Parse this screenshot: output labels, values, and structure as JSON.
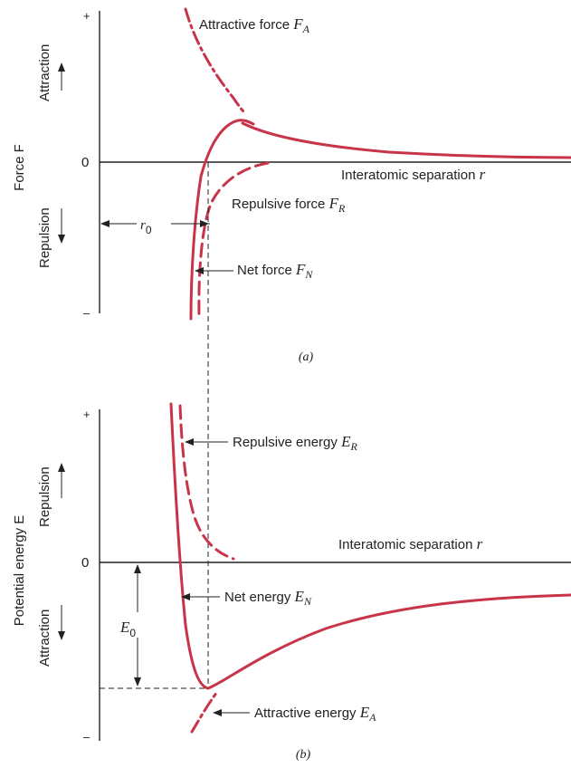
{
  "panel_a": {
    "caption": "(a)",
    "y_axis_label": "Force F",
    "plus": "+",
    "minus": "–",
    "zero": "0",
    "side_top": "Attraction",
    "side_bottom": "Repulsion",
    "x_axis_label": {
      "text": "Interatomic separation ",
      "var": "r"
    },
    "attractive": {
      "text": "Attractive force ",
      "var": "F",
      "sub": "A"
    },
    "repulsive": {
      "text": "Repulsive force ",
      "var": "F",
      "sub": "R"
    },
    "net": {
      "text": "Net force ",
      "var": "F",
      "sub": "N"
    },
    "r0": {
      "var": "r",
      "sub": "0"
    }
  },
  "panel_b": {
    "caption": "(b)",
    "y_axis_label": "Potential energy E",
    "plus": "+",
    "minus": "–",
    "zero": "0",
    "side_top": "Repulsion",
    "side_bottom": "Attraction",
    "x_axis_label": {
      "text": "Interatomic separation ",
      "var": "r"
    },
    "repulsive": {
      "text": "Repulsive energy ",
      "var": "E",
      "sub": "R"
    },
    "net": {
      "text": "Net energy ",
      "var": "E",
      "sub": "N"
    },
    "attractive": {
      "text": "Attractive energy ",
      "var": "E",
      "sub": "A"
    },
    "e0": {
      "var": "E",
      "sub": "0"
    }
  },
  "colors": {
    "curve": "#c8344a",
    "ink": "#222222"
  }
}
